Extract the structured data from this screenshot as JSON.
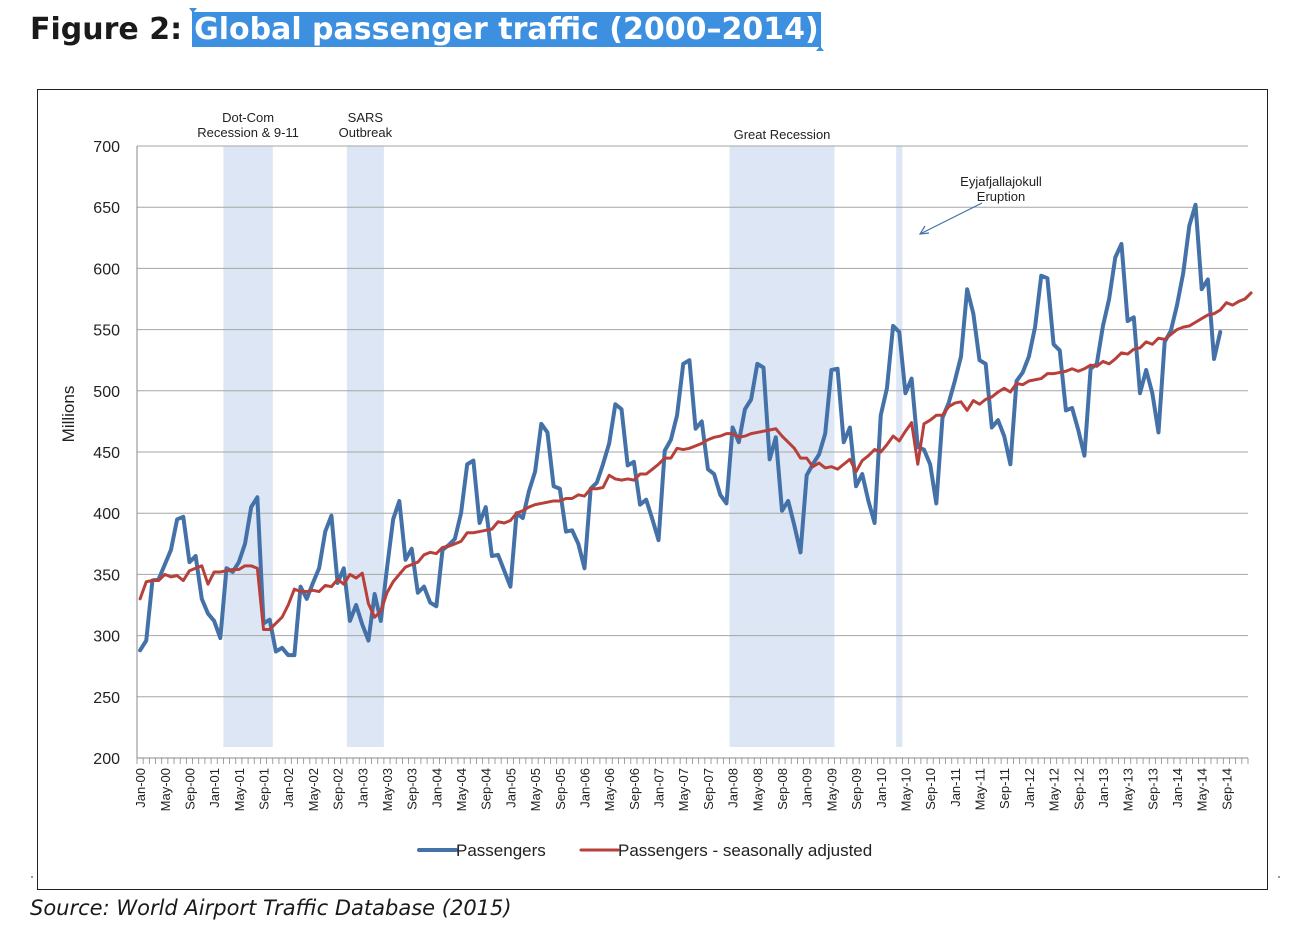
{
  "figure": {
    "label": "Figure 2:",
    "title": "Global passenger traffic (2000–2014)"
  },
  "source": "Source: World Airport Traffic Database (2015)",
  "colors": {
    "passengers": "#4472a8",
    "seasonally_adjusted": "#b8403a",
    "recession_shade": "#dce6f4",
    "gridline": "#a6a6a6",
    "title_highlight": "#3d8fe0"
  },
  "chart_data": {
    "type": "line",
    "title": "",
    "xlabel": "",
    "ylabel": "Millions",
    "ylim": [
      200,
      700
    ],
    "yticks": [
      200,
      250,
      300,
      350,
      400,
      450,
      500,
      550,
      600,
      650,
      700
    ],
    "grid": "horizontal",
    "legend_position": "bottom",
    "x_start": "Jan-00",
    "x_end": "Dec-14",
    "x_tick_labels": [
      "Jan-00",
      "May-00",
      "Sep-00",
      "Jan-01",
      "May-01",
      "Sep-01",
      "Jan-02",
      "May-02",
      "Sep-02",
      "Jan-03",
      "May-03",
      "Sep-03",
      "Jan-04",
      "May-04",
      "Sep-04",
      "Jan-05",
      "May-05",
      "Sep-05",
      "Jan-06",
      "May-06",
      "Sep-06",
      "Jan-07",
      "May-07",
      "Sep-07",
      "Jan-08",
      "May-08",
      "Sep-08",
      "Jan-09",
      "May-09",
      "Sep-09",
      "Jan-10",
      "May-10",
      "Sep-10",
      "Jan-11",
      "May-11",
      "Sep-11",
      "Jan-12",
      "May-12",
      "Sep-12",
      "Jan-13",
      "May-13",
      "Sep-13",
      "Jan-14",
      "May-14",
      "Sep-14"
    ],
    "shaded_periods": [
      {
        "label": "Dot-Com Recession & 9-11",
        "start": "Mar-01",
        "end": "Nov-01"
      },
      {
        "label": "SARS Outbreak",
        "start": "Nov-02",
        "end": "May-03"
      },
      {
        "label": "Great Recession",
        "start": "Jan-08",
        "end": "Jun-09"
      },
      {
        "label": "",
        "start": "Apr-10",
        "end": "May-10"
      }
    ],
    "annotations": [
      {
        "text": "Dot-Com Recession & 9-11",
        "lines": [
          "Dot-Com",
          "Recession & 9-11"
        ]
      },
      {
        "text": "SARS Outbreak",
        "lines": [
          "SARS",
          "Outbreak"
        ]
      },
      {
        "text": "Great Recession",
        "lines": [
          "Great Recession"
        ]
      },
      {
        "text": "Eyjafjallajokull Eruption",
        "lines": [
          "Eyjafjallajokull",
          "Eruption"
        ],
        "points_to": "Apr-10"
      }
    ],
    "series": [
      {
        "name": "Passengers",
        "values": [
          288,
          296,
          345,
          346,
          358,
          370,
          395,
          397,
          360,
          365,
          330,
          318,
          312,
          298,
          355,
          352,
          360,
          375,
          405,
          413,
          310,
          313,
          287,
          290,
          284,
          284,
          340,
          330,
          343,
          355,
          385,
          398,
          343,
          355,
          312,
          325,
          309,
          296,
          334,
          312,
          355,
          395,
          410,
          362,
          371,
          335,
          340,
          327,
          324,
          370,
          374,
          379,
          400,
          440,
          443,
          392,
          405,
          365,
          366,
          353,
          340,
          400,
          396,
          418,
          434,
          473,
          466,
          422,
          420,
          385,
          386,
          375,
          355,
          420,
          425,
          440,
          457,
          489,
          485,
          439,
          442,
          407,
          411,
          395,
          378,
          451,
          460,
          480,
          522,
          525,
          469,
          475,
          436,
          432,
          415,
          408,
          470,
          458,
          485,
          493,
          522,
          519,
          444,
          462,
          402,
          410,
          390,
          368,
          431,
          440,
          448,
          465,
          517,
          518,
          458,
          470,
          422,
          432,
          410,
          392,
          480,
          502,
          553,
          548,
          498,
          510,
          454,
          452,
          440,
          408,
          478,
          490,
          508,
          528,
          583,
          563,
          525,
          522,
          470,
          476,
          463,
          440,
          508,
          515,
          528,
          552,
          594,
          592,
          538,
          533,
          484,
          486,
          468,
          447,
          518,
          522,
          553,
          575,
          609,
          620,
          557,
          560,
          498,
          517,
          498,
          466,
          540,
          549,
          570,
          596,
          635,
          652,
          583,
          591,
          526,
          548
        ]
      },
      {
        "name": "Passengers - seasonally adjusted",
        "values": [
          330,
          344,
          345,
          345,
          350,
          348,
          349,
          345,
          353,
          355,
          357,
          342,
          352,
          352,
          353,
          354,
          354,
          357,
          357,
          355,
          305,
          305,
          310,
          315,
          325,
          338,
          336,
          336,
          337,
          336,
          341,
          340,
          346,
          342,
          350,
          347,
          351,
          326,
          315,
          320,
          335,
          344,
          350,
          356,
          358,
          360,
          366,
          368,
          367,
          372,
          373,
          375,
          377,
          384,
          384,
          385,
          386,
          387,
          393,
          392,
          394,
          400,
          402,
          405,
          407,
          408,
          409,
          410,
          410,
          412,
          412,
          415,
          414,
          420,
          420,
          421,
          431,
          428,
          427,
          428,
          427,
          432,
          432,
          436,
          440,
          445,
          445,
          453,
          452,
          453,
          455,
          457,
          460,
          462,
          463,
          465,
          465,
          462,
          463,
          465,
          466,
          467,
          468,
          469,
          463,
          458,
          453,
          445,
          445,
          438,
          441,
          437,
          438,
          436,
          440,
          444,
          434,
          443,
          447,
          452,
          450,
          456,
          463,
          459,
          467,
          474,
          440,
          473,
          476,
          480,
          480,
          487,
          490,
          491,
          484,
          492,
          489,
          493,
          495,
          499,
          502,
          499,
          506,
          505,
          508,
          509,
          510,
          514,
          514,
          515,
          516,
          518,
          516,
          518,
          521,
          520,
          524,
          522,
          526,
          531,
          530,
          534,
          535,
          540,
          538,
          543,
          542,
          546,
          550,
          552,
          553,
          556,
          559,
          562,
          563,
          566,
          572,
          570,
          573,
          575,
          580
        ]
      }
    ]
  }
}
